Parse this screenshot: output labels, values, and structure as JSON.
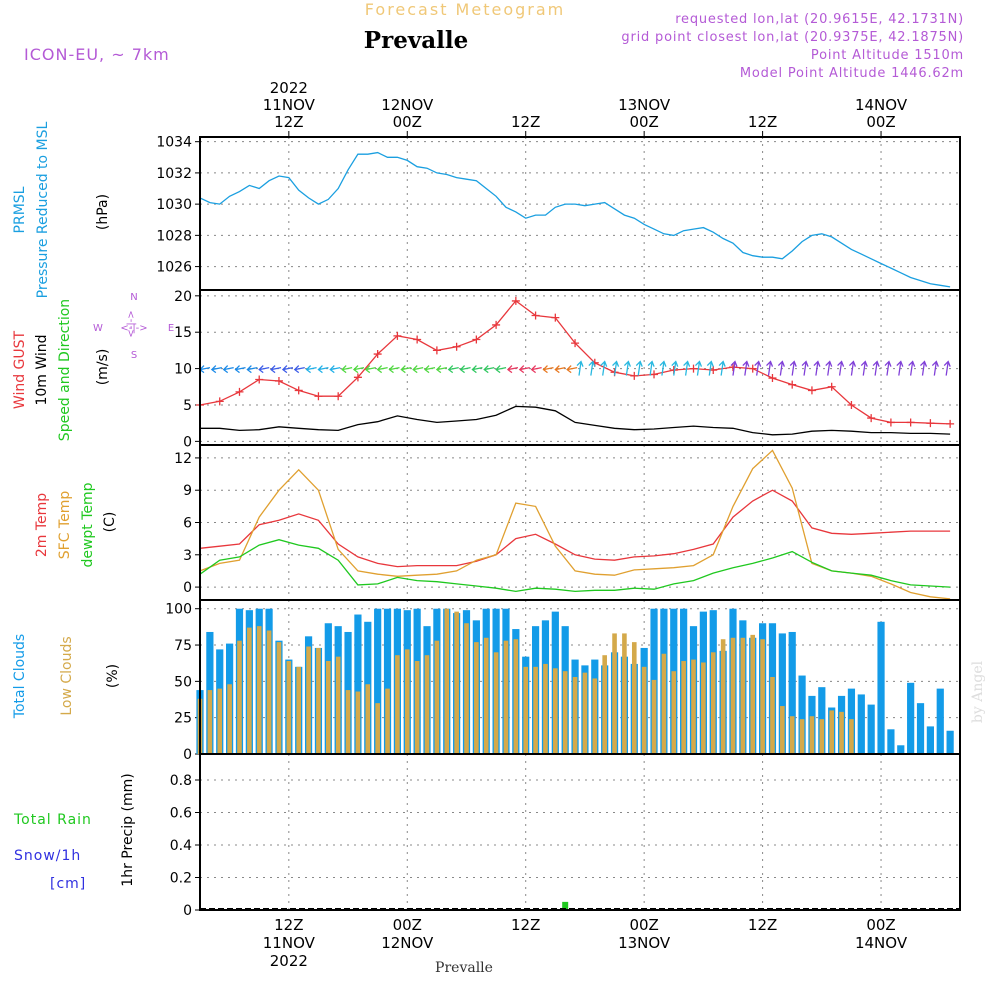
{
  "header": {
    "top_title": "Forecast Meteogram",
    "station_title": "Prevalle",
    "model": "ICON-EU, ~ 7km",
    "requested": "requested lon,lat (20.9615E, 42.1731N)",
    "grid_point": "grid point closest lon,lat (20.9375E, 42.1875N)",
    "point_altitude": "Point Altitude 1510m",
    "model_altitude": "Model Point Altitude 1446.62m"
  },
  "time_axis": {
    "start": "2022-11-11T03:00Z",
    "hours_total": 77,
    "top_labels": [
      {
        "hour": 9,
        "lines": [
          "2022",
          "11NOV",
          "12Z"
        ]
      },
      {
        "hour": 21,
        "lines": [
          "12NOV",
          "00Z"
        ]
      },
      {
        "hour": 33,
        "lines": [
          "12Z"
        ]
      },
      {
        "hour": 45,
        "lines": [
          "13NOV",
          "00Z"
        ]
      },
      {
        "hour": 57,
        "lines": [
          "12Z"
        ]
      },
      {
        "hour": 69,
        "lines": [
          "14NOV",
          "00Z"
        ]
      }
    ],
    "bottom_labels": [
      {
        "hour": 9,
        "lines": [
          "12Z",
          "11NOV",
          "2022"
        ]
      },
      {
        "hour": 21,
        "lines": [
          "00Z",
          "12NOV"
        ]
      },
      {
        "hour": 33,
        "lines": [
          "12Z"
        ]
      },
      {
        "hour": 45,
        "lines": [
          "00Z",
          "13NOV"
        ]
      },
      {
        "hour": 57,
        "lines": [
          "12Z"
        ]
      },
      {
        "hour": 69,
        "lines": [
          "00Z",
          "14NOV"
        ]
      }
    ],
    "footer": "Prevalle"
  },
  "watermark": "by Angel",
  "compass": {
    "n": "N",
    "s": "S",
    "w": "W",
    "e": "E",
    "arrows": "<-|->"
  },
  "colors": {
    "pressure": "#1a9fe0",
    "gust": "#e8373c",
    "wind": "#000000",
    "t2m": "#e8373c",
    "tsfc": "#e0a030",
    "dewpt": "#1fc81f",
    "total_clouds": "#139be8",
    "low_clouds": "#d4a94a",
    "rain": "#1fc81f",
    "snow": "#3030e0",
    "label_purple": "#b45ad6",
    "grid": "#888888"
  },
  "chart_data": [
    {
      "type": "line",
      "panel": "pressure",
      "label_lines": [
        "PRMSL",
        "Pressure Reduced to MSL"
      ],
      "unit": "(hPa)",
      "ylim": [
        1024.5,
        1034.3
      ],
      "yticks": [
        1026,
        1028,
        1030,
        1032,
        1034
      ],
      "series": [
        {
          "name": "PRMSL",
          "x_hours": [
            0,
            1,
            2,
            3,
            4,
            5,
            6,
            7,
            8,
            9,
            10,
            11,
            12,
            13,
            14,
            15,
            16,
            17,
            18,
            19,
            20,
            21,
            22,
            23,
            24,
            25,
            26,
            27,
            28,
            29,
            30,
            31,
            32,
            33,
            34,
            35,
            36,
            37,
            38,
            39,
            40,
            41,
            42,
            43,
            44,
            45,
            46,
            47,
            48,
            49,
            50,
            51,
            52,
            53,
            54,
            55,
            56,
            57,
            58,
            59,
            60,
            61,
            62,
            63,
            64,
            65,
            66,
            67,
            68,
            69,
            70,
            71,
            72,
            73,
            74,
            75,
            76
          ],
          "values": [
            1030.4,
            1030.1,
            1030.0,
            1030.5,
            1030.8,
            1031.2,
            1031.0,
            1031.5,
            1031.8,
            1031.7,
            1030.9,
            1030.4,
            1030.0,
            1030.3,
            1031.0,
            1032.2,
            1033.2,
            1033.2,
            1033.3,
            1033.0,
            1033.0,
            1032.8,
            1032.4,
            1032.3,
            1032.0,
            1031.9,
            1031.7,
            1031.6,
            1031.5,
            1031.0,
            1030.5,
            1029.8,
            1029.5,
            1029.1,
            1029.3,
            1029.3,
            1029.8,
            1030.0,
            1030.0,
            1029.9,
            1030.0,
            1030.1,
            1029.7,
            1029.3,
            1029.1,
            1028.7,
            1028.4,
            1028.1,
            1028.0,
            1028.3,
            1028.4,
            1028.5,
            1028.2,
            1027.8,
            1027.5,
            1026.9,
            1026.7,
            1026.6,
            1026.6,
            1026.5,
            1027.0,
            1027.6,
            1028.0,
            1028.1,
            1027.9,
            1027.5,
            1027.1,
            1026.8,
            1026.5,
            1026.2,
            1025.9,
            1025.6,
            1025.3,
            1025.1,
            1024.9,
            1024.8,
            1024.7
          ]
        }
      ]
    },
    {
      "type": "line",
      "panel": "wind",
      "label_lines": [
        "Wind GUST",
        "10m Wind",
        "Speed and Direction"
      ],
      "unit": "(m/s)",
      "ylim": [
        -0.5,
        20.8
      ],
      "yticks": [
        0,
        5,
        10,
        15,
        20
      ],
      "series": [
        {
          "name": "Wind GUST",
          "marker": "+",
          "x_hours": [
            0,
            2,
            4,
            6,
            8,
            10,
            12,
            14,
            16,
            18,
            20,
            22,
            24,
            26,
            28,
            30,
            32,
            34,
            36,
            38,
            40,
            42,
            44,
            46,
            48,
            50,
            52,
            54,
            56,
            58,
            60,
            62,
            64,
            66,
            68,
            70,
            72,
            74,
            76
          ],
          "values": [
            5.0,
            5.5,
            6.8,
            8.5,
            8.3,
            7.0,
            6.2,
            6.2,
            8.8,
            12.0,
            14.5,
            14.0,
            12.5,
            13.0,
            14.0,
            16.0,
            19.3,
            17.3,
            17.0,
            13.5,
            10.8,
            9.5,
            9.0,
            9.2,
            9.8,
            10.0,
            9.8,
            10.2,
            10.0,
            8.7,
            7.8,
            7.0,
            7.5,
            5.0,
            3.2,
            2.6,
            2.6,
            2.5,
            2.4
          ]
        },
        {
          "name": "10m Wind",
          "x_hours": [
            0,
            2,
            4,
            6,
            8,
            10,
            12,
            14,
            16,
            18,
            20,
            22,
            24,
            26,
            28,
            30,
            32,
            34,
            36,
            38,
            40,
            42,
            44,
            46,
            48,
            50,
            52,
            54,
            56,
            58,
            60,
            62,
            64,
            66,
            68,
            70,
            72,
            74,
            76
          ],
          "values": [
            1.8,
            1.8,
            1.5,
            1.6,
            2.0,
            1.8,
            1.6,
            1.5,
            2.3,
            2.7,
            3.5,
            3.0,
            2.6,
            2.8,
            3.0,
            3.6,
            4.8,
            4.7,
            4.2,
            2.6,
            2.2,
            1.8,
            1.6,
            1.7,
            1.9,
            2.1,
            1.9,
            1.8,
            1.2,
            0.9,
            1.0,
            1.4,
            1.5,
            1.4,
            1.2,
            1.2,
            1.1,
            1.1,
            1.0
          ]
        }
      ]
    },
    {
      "type": "line",
      "panel": "temperature",
      "label_lines": [
        "2m Temp",
        "SFC Temp",
        "dewpt Temp"
      ],
      "unit": "(C)",
      "ylim": [
        -1.2,
        13.2
      ],
      "yticks": [
        0,
        3,
        6,
        9,
        12
      ],
      "series": [
        {
          "name": "2m Temp",
          "x_hours": [
            0,
            2,
            4,
            6,
            8,
            10,
            12,
            14,
            16,
            18,
            20,
            22,
            24,
            26,
            28,
            30,
            32,
            34,
            36,
            38,
            40,
            42,
            44,
            46,
            48,
            50,
            52,
            54,
            56,
            58,
            60,
            62,
            64,
            66,
            68,
            70,
            72,
            74,
            76
          ],
          "values": [
            3.6,
            3.8,
            4.0,
            5.8,
            6.2,
            6.8,
            6.2,
            4.0,
            2.8,
            2.2,
            1.9,
            2.0,
            2.0,
            2.0,
            2.4,
            3.0,
            4.5,
            4.9,
            4.0,
            3.0,
            2.6,
            2.5,
            2.8,
            2.9,
            3.1,
            3.5,
            4.0,
            6.5,
            8.0,
            9.0,
            8.0,
            5.5,
            5.0,
            4.9,
            5.0,
            5.1,
            5.2,
            5.2,
            5.2
          ]
        },
        {
          "name": "SFC Temp",
          "x_hours": [
            0,
            2,
            4,
            6,
            8,
            10,
            12,
            14,
            16,
            18,
            20,
            22,
            24,
            26,
            28,
            30,
            32,
            34,
            36,
            38,
            40,
            42,
            44,
            46,
            48,
            50,
            52,
            54,
            56,
            58,
            60,
            62,
            64,
            66,
            68,
            70,
            72,
            74,
            76
          ],
          "values": [
            1.5,
            2.2,
            2.5,
            6.5,
            9.0,
            10.9,
            9.0,
            3.5,
            1.5,
            1.2,
            1.0,
            1.1,
            1.2,
            1.5,
            2.5,
            3.0,
            7.8,
            7.5,
            3.8,
            1.5,
            1.2,
            1.1,
            1.6,
            1.7,
            1.8,
            2.0,
            3.0,
            7.5,
            11.0,
            12.7,
            9.2,
            2.2,
            1.5,
            1.3,
            1.0,
            0.3,
            -0.5,
            -0.9,
            -1.1
          ]
        },
        {
          "name": "dewpt Temp",
          "x_hours": [
            0,
            2,
            4,
            6,
            8,
            10,
            12,
            14,
            16,
            18,
            20,
            22,
            24,
            26,
            28,
            30,
            32,
            34,
            36,
            38,
            40,
            42,
            44,
            46,
            48,
            50,
            52,
            54,
            56,
            58,
            60,
            62,
            64,
            66,
            68,
            70,
            72,
            74,
            76
          ],
          "values": [
            1.2,
            2.5,
            2.8,
            3.9,
            4.4,
            3.9,
            3.6,
            2.5,
            0.2,
            0.3,
            0.9,
            0.6,
            0.5,
            0.3,
            0.1,
            -0.1,
            -0.4,
            -0.1,
            -0.2,
            -0.4,
            -0.3,
            -0.3,
            -0.1,
            -0.2,
            0.3,
            0.6,
            1.3,
            1.8,
            2.2,
            2.7,
            3.3,
            2.3,
            1.5,
            1.3,
            1.1,
            0.6,
            0.2,
            0.1,
            0.0
          ]
        }
      ]
    },
    {
      "type": "bar",
      "panel": "clouds",
      "label_lines": [
        "Total Clouds",
        "Low Clouds"
      ],
      "unit": "(%)",
      "ylim": [
        0,
        106
      ],
      "yticks": [
        0,
        25,
        50,
        75,
        100
      ],
      "x_hours": [
        0,
        1,
        2,
        3,
        4,
        5,
        6,
        7,
        8,
        9,
        10,
        11,
        12,
        13,
        14,
        15,
        16,
        17,
        18,
        19,
        20,
        21,
        22,
        23,
        24,
        25,
        26,
        27,
        28,
        29,
        30,
        31,
        32,
        33,
        34,
        35,
        36,
        37,
        38,
        39,
        40,
        41,
        42,
        43,
        44,
        45,
        46,
        47,
        48,
        49,
        50,
        51,
        52,
        53,
        54,
        55,
        56,
        57,
        58,
        59,
        60,
        61,
        62,
        63,
        64,
        65,
        66,
        67,
        68,
        69,
        70,
        71,
        72,
        73,
        74,
        75,
        76
      ],
      "series": [
        {
          "name": "Total Clouds",
          "values": [
            44,
            84,
            72,
            76,
            100,
            99,
            100,
            100,
            78,
            65,
            60,
            81,
            73,
            90,
            88,
            84,
            96,
            91,
            100,
            100,
            100,
            99,
            100,
            88,
            100,
            100,
            97,
            99,
            92,
            100,
            100,
            100,
            86,
            67,
            88,
            92,
            98,
            88,
            65,
            61,
            65,
            61,
            70,
            67,
            62,
            73,
            100,
            100,
            100,
            100,
            88,
            98,
            99,
            71,
            100,
            92,
            80,
            90,
            90,
            83,
            84,
            54,
            40,
            46,
            32,
            40,
            45,
            41,
            34,
            91,
            17,
            6,
            49,
            35,
            19,
            45,
            16
          ]
        },
        {
          "name": "Low Clouds",
          "values": [
            38,
            44,
            45,
            48,
            78,
            87,
            88,
            85,
            77,
            64,
            60,
            74,
            73,
            64,
            67,
            44,
            43,
            48,
            35,
            45,
            68,
            72,
            64,
            68,
            78,
            100,
            98,
            90,
            77,
            80,
            70,
            78,
            79,
            60,
            60,
            62,
            59,
            57,
            53,
            56,
            52,
            68,
            83,
            83,
            77,
            60,
            51,
            69,
            57,
            64,
            65,
            63,
            70,
            79,
            80,
            80,
            82,
            79,
            53,
            33,
            26,
            24,
            26,
            24,
            30,
            29,
            24,
            0,
            0,
            0,
            0,
            0,
            0,
            0,
            0,
            0,
            0
          ]
        }
      ]
    },
    {
      "type": "bar",
      "panel": "precip",
      "label_lines": [
        "Total Rain",
        "Snow/1h",
        "[cm]"
      ],
      "unit": "1hr Precip (mm)",
      "ylim": [
        0,
        0.96
      ],
      "yticks": [
        0,
        0.2,
        0.4,
        0.6,
        0.8
      ],
      "x_hours": [
        31,
        37
      ],
      "series": [
        {
          "name": "Total Rain",
          "values": [
            0.005,
            0.05
          ]
        }
      ]
    }
  ]
}
